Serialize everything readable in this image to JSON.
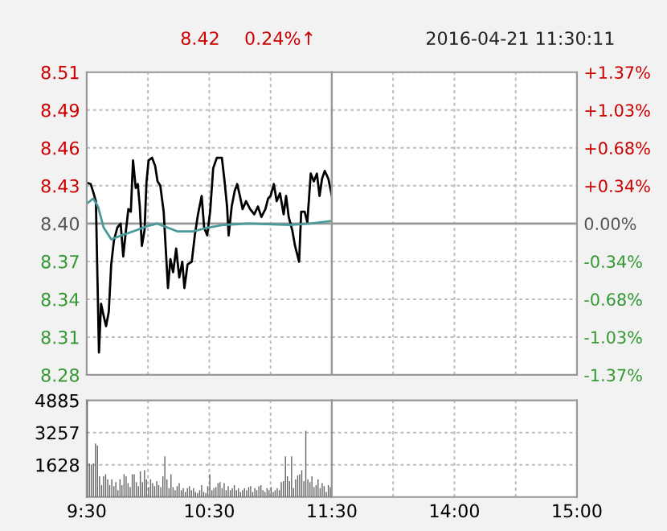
{
  "chart_data": [
    {
      "type": "line",
      "annotations": [
        "8.42",
        "0.24%↑",
        "2016-04-21 11:30:11"
      ],
      "xlim": [
        9.5,
        11.5
      ],
      "xticks": [
        {
          "value": 9.5,
          "label": null
        },
        {
          "value": 10,
          "label": null
        },
        {
          "value": 10.5,
          "label": null
        },
        {
          "value": 11,
          "label": null
        },
        {
          "value": 11.5,
          "label": null
        }
      ],
      "ylim": [
        8.285,
        8.515
      ],
      "yticks": [
        {
          "value": 8.285,
          "label": "8.28"
        },
        {
          "value": 8.31375,
          "label": "8.31"
        },
        {
          "value": 8.3425,
          "label": "8.34"
        },
        {
          "value": 8.37125,
          "label": "8.37"
        },
        {
          "value": 8.4,
          "label": "8.40"
        },
        {
          "value": 8.42875,
          "label": "8.43"
        },
        {
          "value": 8.4575,
          "label": "8.46"
        },
        {
          "value": 8.48625,
          "label": "8.49"
        },
        {
          "value": 8.515,
          "label": "8.51"
        }
      ],
      "tick_labels": "y",
      "grid": true,
      "legend": false,
      "ref_lines": [
        {
          "axis": "y",
          "value": 8.4,
          "color": "#999999"
        }
      ],
      "series": [
        {
          "color": "#000000",
          "x": [
            9.5,
            9.533,
            9.553,
            9.575,
            9.588,
            9.6,
            9.617,
            9.638,
            9.658,
            9.68,
            9.7,
            9.722,
            9.75,
            9.777,
            9.798,
            9.818,
            9.84,
            9.86,
            9.878,
            9.9,
            9.917,
            9.933,
            9.95,
            9.972,
            9.988,
            10.005,
            10.033,
            10.058,
            10.078,
            10.1,
            10.128,
            10.163,
            10.183,
            10.205,
            10.23,
            10.255,
            10.28,
            10.297,
            10.323,
            10.357,
            10.382,
            10.408,
            10.438,
            10.458,
            10.483,
            10.507,
            10.532,
            10.562,
            10.603,
            10.625,
            10.645,
            10.658,
            10.683,
            10.708,
            10.728,
            10.75,
            10.772,
            10.8,
            10.833,
            10.867,
            10.897,
            10.925,
            10.958,
            10.98,
            11.0,
            11.027,
            11.05,
            11.077,
            11.107,
            11.127,
            11.148,
            11.177,
            11.2,
            11.233,
            11.25,
            11.278,
            11.3,
            11.328,
            11.353,
            11.378,
            11.4,
            11.42,
            11.442,
            11.472,
            11.5
          ],
          "values": [
            8.431,
            8.43,
            8.424,
            8.417,
            8.357,
            8.302,
            8.339,
            8.33,
            8.322,
            8.333,
            8.369,
            8.387,
            8.397,
            8.4,
            8.375,
            8.393,
            8.411,
            8.409,
            8.448,
            8.427,
            8.43,
            8.413,
            8.383,
            8.395,
            8.432,
            8.448,
            8.45,
            8.444,
            8.432,
            8.429,
            8.409,
            8.351,
            8.373,
            8.363,
            8.381,
            8.359,
            8.371,
            8.351,
            8.369,
            8.371,
            8.391,
            8.407,
            8.421,
            8.397,
            8.391,
            8.409,
            8.442,
            8.45,
            8.45,
            8.432,
            8.413,
            8.391,
            8.413,
            8.425,
            8.43,
            8.421,
            8.411,
            8.417,
            8.411,
            8.407,
            8.413,
            8.405,
            8.411,
            8.419,
            8.421,
            8.43,
            8.417,
            8.423,
            8.407,
            8.421,
            8.405,
            8.395,
            8.383,
            8.371,
            8.409,
            8.409,
            8.401,
            8.438,
            8.432,
            8.438,
            8.421,
            8.434,
            8.44,
            8.434,
            8.421
          ]
        },
        {
          "color": "#4a9a9a",
          "x": [
            9.5,
            9.553,
            9.592,
            9.638,
            9.7,
            9.783,
            9.908,
            9.992,
            10.075,
            10.158,
            10.242,
            10.367,
            10.492,
            10.617,
            10.825,
            11.158,
            11.325,
            11.5
          ],
          "values": [
            8.415,
            8.419,
            8.413,
            8.397,
            8.388,
            8.391,
            8.395,
            8.398,
            8.4,
            8.397,
            8.394,
            8.394,
            8.397,
            8.399,
            8.4,
            8.399,
            8.4,
            8.402
          ]
        }
      ]
    },
    {
      "type": "line",
      "xlim": [
        13,
        15
      ],
      "xticks": [
        {
          "value": 13.5,
          "label": null
        },
        {
          "value": 14,
          "label": null
        },
        {
          "value": 14.5,
          "label": null
        },
        {
          "value": 15,
          "label": null
        }
      ],
      "ylim": [
        -1.37,
        1.37
      ],
      "yticks": [
        {
          "value": -1.37,
          "label": "-1.37%"
        },
        {
          "value": -1.0275,
          "label": "-1.03%"
        },
        {
          "value": -0.685,
          "label": "-0.68%"
        },
        {
          "value": -0.3425,
          "label": "-0.34%"
        },
        {
          "value": 0,
          "label": "0.00%"
        },
        {
          "value": 0.3425,
          "label": "+0.34%"
        },
        {
          "value": 0.685,
          "label": "+0.68%"
        },
        {
          "value": 1.0275,
          "label": "+1.03%"
        },
        {
          "value": 1.37,
          "label": "+1.37%"
        }
      ],
      "tick_labels": "y",
      "grid": true,
      "legend": false,
      "ref_lines": [
        {
          "axis": "y",
          "value": 0,
          "color": "#999999"
        }
      ]
    },
    {
      "type": "bar",
      "xlim": [
        9.5,
        11.5
      ],
      "xticks": [
        {
          "value": 9.5,
          "label": "9:30"
        },
        {
          "value": 10,
          "label": null
        },
        {
          "value": 10.5,
          "label": "10:30"
        },
        {
          "value": 11,
          "label": null
        },
        {
          "value": 11.5,
          "label": "11:30"
        }
      ],
      "ylim": [
        0,
        4885
      ],
      "yticks": [
        1628,
        3257,
        4885
      ],
      "grid": true,
      "legend": false,
      "color": "#666666",
      "x": [
        9.5,
        9.517,
        9.533,
        9.55,
        9.567,
        9.583,
        9.6,
        9.617,
        9.633,
        9.65,
        9.667,
        9.683,
        9.7,
        9.717,
        9.733,
        9.75,
        9.767,
        9.783,
        9.8,
        9.817,
        9.833,
        9.85,
        9.867,
        9.883,
        9.9,
        9.917,
        9.933,
        9.95,
        9.967,
        9.983,
        10.0,
        10.017,
        10.033,
        10.05,
        10.067,
        10.083,
        10.1,
        10.117,
        10.133,
        10.15,
        10.167,
        10.183,
        10.2,
        10.217,
        10.233,
        10.25,
        10.267,
        10.283,
        10.3,
        10.317,
        10.333,
        10.35,
        10.367,
        10.383,
        10.4,
        10.417,
        10.433,
        10.45,
        10.467,
        10.483,
        10.5,
        10.517,
        10.533,
        10.55,
        10.567,
        10.583,
        10.6,
        10.617,
        10.633,
        10.65,
        10.667,
        10.683,
        10.7,
        10.717,
        10.733,
        10.75,
        10.767,
        10.783,
        10.8,
        10.817,
        10.833,
        10.85,
        10.867,
        10.883,
        10.9,
        10.917,
        10.933,
        10.95,
        10.967,
        10.983,
        11.0,
        11.017,
        11.033,
        11.05,
        11.067,
        11.083,
        11.1,
        11.117,
        11.133,
        11.15,
        11.167,
        11.183,
        11.2,
        11.217,
        11.233,
        11.25,
        11.267,
        11.283,
        11.3,
        11.317,
        11.333,
        11.35,
        11.367,
        11.383,
        11.4,
        11.417,
        11.433,
        11.45,
        11.467,
        11.483
      ],
      "values": [
        4885,
        1700,
        1650,
        1700,
        2700,
        2600,
        1050,
        600,
        1050,
        1150,
        900,
        600,
        900,
        550,
        750,
        350,
        900,
        600,
        1150,
        1050,
        700,
        500,
        1150,
        1150,
        750,
        550,
        1300,
        750,
        1350,
        900,
        500,
        900,
        700,
        550,
        800,
        600,
        500,
        1050,
        2050,
        900,
        450,
        1150,
        500,
        350,
        550,
        700,
        350,
        450,
        250,
        450,
        550,
        350,
        450,
        250,
        200,
        350,
        600,
        250,
        200,
        550,
        1150,
        350,
        450,
        500,
        700,
        750,
        450,
        700,
        350,
        550,
        350,
        450,
        600,
        350,
        450,
        250,
        350,
        450,
        350,
        500,
        550,
        250,
        450,
        350,
        550,
        600,
        350,
        250,
        450,
        350,
        500,
        250,
        350,
        450,
        350,
        750,
        800,
        2050,
        1050,
        800,
        2050,
        450,
        900,
        1100,
        1150,
        1350,
        800,
        3350,
        900,
        750,
        1050,
        500,
        600,
        900,
        450,
        700,
        550,
        250,
        600,
        500
      ]
    },
    {
      "type": "bar",
      "xlim": [
        13,
        15
      ],
      "xticks": [
        {
          "value": 13.5,
          "label": null
        },
        {
          "value": 14,
          "label": "14:00"
        },
        {
          "value": 14.5,
          "label": null
        },
        {
          "value": 15,
          "label": "15:00"
        }
      ],
      "ylim": [
        0,
        4885
      ],
      "yticks": [
        {
          "value": 1628,
          "label": null
        },
        {
          "value": 3257,
          "label": null
        },
        {
          "value": 4885,
          "label": null
        }
      ],
      "tick_labels": "x",
      "grid": true,
      "legend": false,
      "color": "#666666"
    }
  ]
}
